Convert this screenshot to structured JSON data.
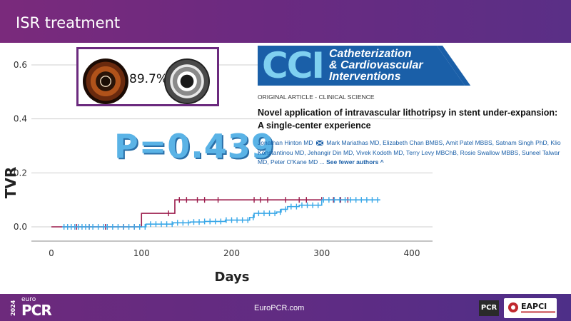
{
  "slide": {
    "title": "ISR treatment"
  },
  "figure": {
    "percentage": "89.7%",
    "p_value": "P=0.439"
  },
  "chart_data": {
    "type": "line",
    "xlabel": "Days",
    "ylabel": "TVR",
    "xlim": [
      0,
      400
    ],
    "ylim": [
      0,
      0.65
    ],
    "x_ticks": [
      "0",
      "100",
      "200",
      "300",
      "400"
    ],
    "y_ticks": [
      "0.0",
      "0.2",
      "0.4",
      "0.6"
    ],
    "grid": "horizontal",
    "series": [
      {
        "color": "#9b1b4b",
        "steps": [
          [
            0,
            0
          ],
          [
            100,
            0.05
          ],
          [
            137,
            0.05
          ],
          [
            137,
            0.1
          ],
          [
            330,
            0.1
          ]
        ],
        "censor_x": [
          28,
          42,
          60,
          80,
          92,
          130,
          142,
          150,
          162,
          170,
          185,
          225,
          232,
          240,
          260,
          275,
          283,
          300,
          313,
          321,
          329
        ]
      },
      {
        "color": "#3aa8e8",
        "steps": [
          [
            12,
            0
          ],
          [
            105,
            0.01
          ],
          [
            135,
            0.01
          ],
          [
            135,
            0.015
          ],
          [
            154,
            0.015
          ],
          [
            154,
            0.018
          ],
          [
            170,
            0.02
          ],
          [
            193,
            0.025
          ],
          [
            220,
            0.035
          ],
          [
            225,
            0.05
          ],
          [
            250,
            0.055
          ],
          [
            255,
            0.065
          ],
          [
            262,
            0.075
          ],
          [
            275,
            0.08
          ],
          [
            300,
            0.09
          ],
          [
            300,
            0.1
          ],
          [
            365,
            0.1
          ]
        ],
        "censor_x": [
          14,
          18,
          22,
          26,
          30,
          34,
          38,
          42,
          46,
          52,
          58,
          62,
          68,
          74,
          80,
          86,
          92,
          98,
          104,
          110,
          116,
          122,
          128,
          134,
          140,
          146,
          152,
          158,
          164,
          170,
          176,
          182,
          188,
          194,
          200,
          206,
          212,
          218,
          224,
          230,
          236,
          242,
          248,
          254,
          260,
          266,
          272,
          278,
          284,
          290,
          296,
          302,
          308,
          314,
          320,
          326,
          332,
          338,
          344,
          350,
          356,
          362
        ]
      }
    ]
  },
  "journal": {
    "logo": "CCI",
    "name_line1": "Catheterization",
    "name_line2": "& Cardiovascular",
    "name_line3": "Interventions",
    "article_type": "ORIGINAL ARTICLE - CLINICAL SCIENCE",
    "article_title": "Novel application of intravascular lithotripsy in stent under-expansion: A single-center experience",
    "authors_part1": "Jonathan Hinton MD",
    "authors_part2": "Mark Mariathas MD, Elizabeth Chan BMBS, Amit Patel MBBS, Satnam Singh PhD, Klio Konstantinou MD, Jehangir Din MD, Vivek Kodoth MD, Terry Levy MBChB, Rosie Swallow MBBS, Suneel Talwar MD, Peter O'Kane MD ...",
    "see_fewer": "See fewer authors ^"
  },
  "footer": {
    "year": "2024",
    "euro": "euro",
    "pcr": "PCR",
    "url": "EuroPCR.com",
    "pcr_badge": "PCR",
    "eapci": "EAPCI"
  },
  "colors": {
    "header_purple": "#6b2a80",
    "pvalue_blue": "#5ab3e6",
    "journal_blue": "#1a5fa8",
    "red_series": "#9b1b4b",
    "blue_series": "#3aa8e8"
  }
}
